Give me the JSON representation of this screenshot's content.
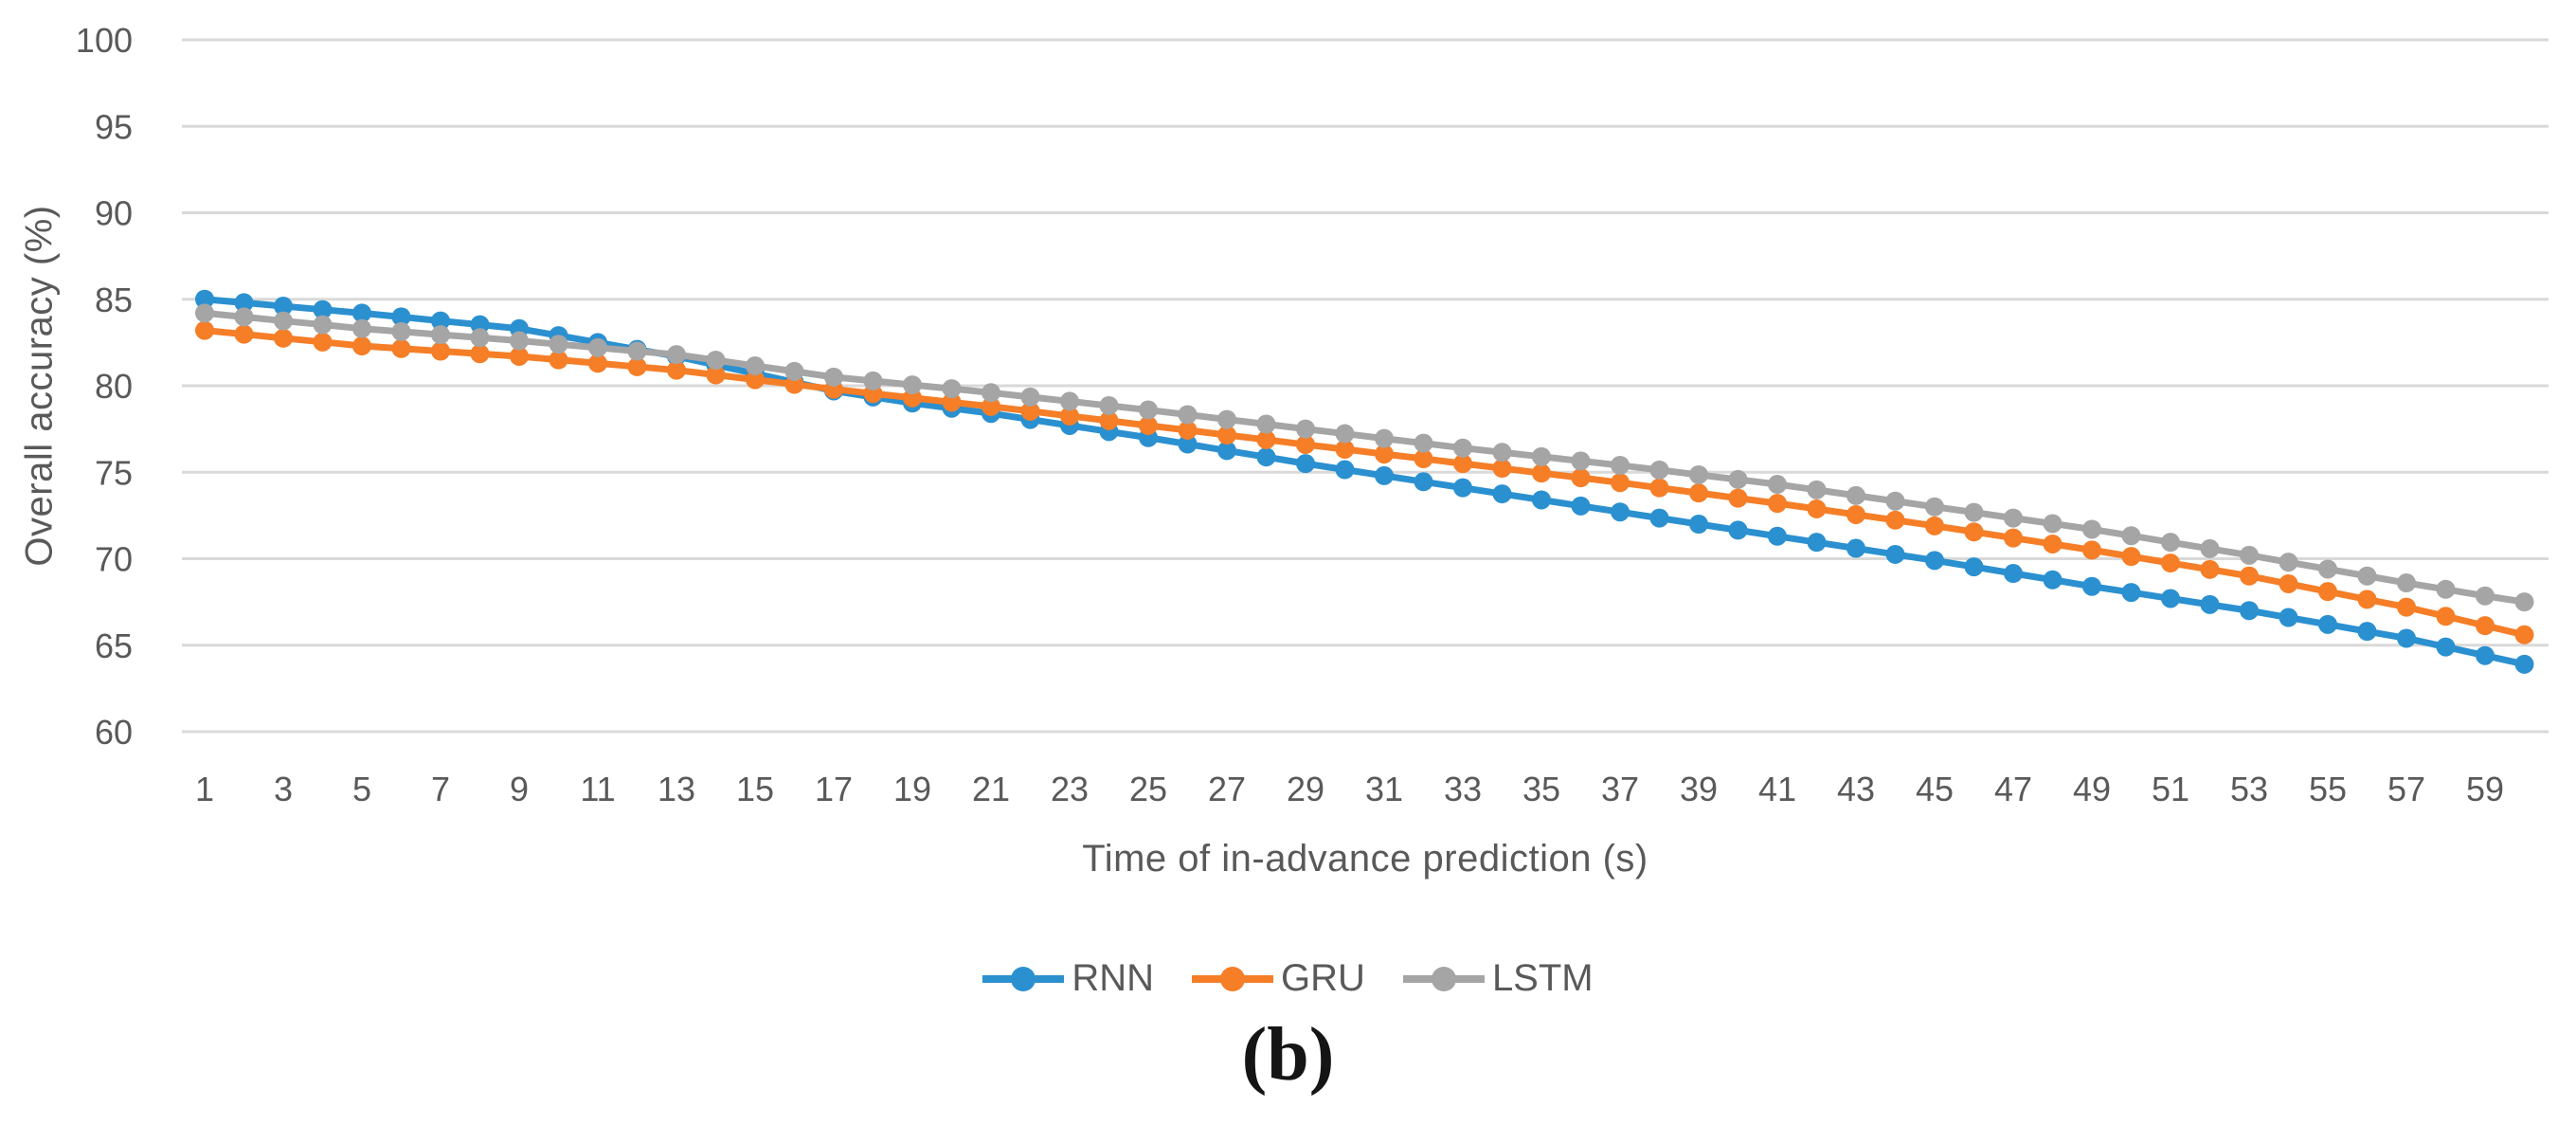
{
  "page": {
    "background": "#ffffff"
  },
  "caption": {
    "text": "(b)"
  },
  "chart_data": {
    "type": "line",
    "title": "",
    "xlabel": "Time of in-advance prediction (s)",
    "ylabel": "Overall accuracy (%)",
    "ylim": [
      60,
      100
    ],
    "ytick_step": 5,
    "grid": "horizontal",
    "legend_position": "bottom-center",
    "styles": {
      "grid_color": "#d9d9d9",
      "tick_color": "#595959",
      "axis_title_color": "#595959",
      "legend_text_color": "#595959",
      "caption_color": "#151515",
      "background": "#ffffff"
    },
    "ytick_labels": [
      "100",
      "95",
      "90",
      "85",
      "80",
      "75",
      "70",
      "65",
      "60"
    ],
    "xtick_labels": [
      "1",
      "3",
      "5",
      "7",
      "9",
      "11",
      "13",
      "15",
      "17",
      "19",
      "21",
      "23",
      "25",
      "27",
      "29",
      "31",
      "33",
      "35",
      "37",
      "39",
      "41",
      "43",
      "45",
      "47",
      "49",
      "51",
      "53",
      "55",
      "57",
      "59"
    ],
    "x": [
      1,
      2,
      3,
      4,
      5,
      6,
      7,
      8,
      9,
      10,
      11,
      12,
      13,
      14,
      15,
      16,
      17,
      18,
      19,
      20,
      21,
      22,
      23,
      24,
      25,
      26,
      27,
      28,
      29,
      30,
      31,
      32,
      33,
      34,
      35,
      36,
      37,
      38,
      39,
      40,
      41,
      42,
      43,
      44,
      45,
      46,
      47,
      48,
      49,
      50,
      51,
      52,
      53,
      54,
      55,
      56,
      57,
      58,
      59,
      60
    ],
    "series": [
      {
        "name": "RNN",
        "color": "#2b90d0",
        "values": [
          85.0,
          84.8,
          84.6,
          84.4,
          84.2,
          83.98,
          83.75,
          83.53,
          83.3,
          82.9,
          82.5,
          82.1,
          81.7,
          81.2,
          80.7,
          80.2,
          79.7,
          79.35,
          79.0,
          78.7,
          78.4,
          78.05,
          77.7,
          77.35,
          77.0,
          76.63,
          76.25,
          75.88,
          75.5,
          75.15,
          74.8,
          74.45,
          74.1,
          73.75,
          73.4,
          73.05,
          72.7,
          72.35,
          72.0,
          71.65,
          71.3,
          70.95,
          70.6,
          70.25,
          69.9,
          69.53,
          69.15,
          68.78,
          68.4,
          68.05,
          67.7,
          67.35,
          67.0,
          66.6,
          66.2,
          65.8,
          65.4,
          64.9,
          64.4,
          63.9
        ]
      },
      {
        "name": "GRU",
        "color": "#f57e27",
        "values": [
          83.2,
          82.98,
          82.75,
          82.53,
          82.3,
          82.15,
          82.0,
          81.85,
          81.7,
          81.5,
          81.3,
          81.1,
          80.9,
          80.63,
          80.35,
          80.08,
          79.8,
          79.55,
          79.3,
          79.05,
          78.8,
          78.53,
          78.25,
          77.98,
          77.7,
          77.43,
          77.15,
          76.88,
          76.6,
          76.33,
          76.05,
          75.78,
          75.5,
          75.23,
          74.95,
          74.68,
          74.4,
          74.1,
          73.8,
          73.5,
          73.2,
          72.88,
          72.55,
          72.23,
          71.9,
          71.55,
          71.2,
          70.85,
          70.5,
          70.13,
          69.75,
          69.38,
          69.0,
          68.55,
          68.1,
          67.65,
          67.2,
          66.67,
          66.13,
          65.6
        ]
      },
      {
        "name": "LSTM",
        "color": "#a5a5a5",
        "values": [
          84.2,
          83.98,
          83.75,
          83.53,
          83.3,
          83.13,
          82.95,
          82.78,
          82.6,
          82.4,
          82.2,
          82.0,
          81.8,
          81.48,
          81.15,
          80.83,
          80.5,
          80.28,
          80.05,
          79.83,
          79.6,
          79.35,
          79.1,
          78.85,
          78.6,
          78.33,
          78.05,
          77.78,
          77.5,
          77.23,
          76.95,
          76.68,
          76.4,
          76.15,
          75.9,
          75.65,
          75.4,
          75.13,
          74.85,
          74.58,
          74.3,
          73.98,
          73.65,
          73.33,
          73.0,
          72.68,
          72.35,
          72.03,
          71.7,
          71.33,
          70.95,
          70.58,
          70.2,
          69.8,
          69.4,
          69.0,
          68.6,
          68.23,
          67.85,
          67.5
        ]
      }
    ]
  }
}
